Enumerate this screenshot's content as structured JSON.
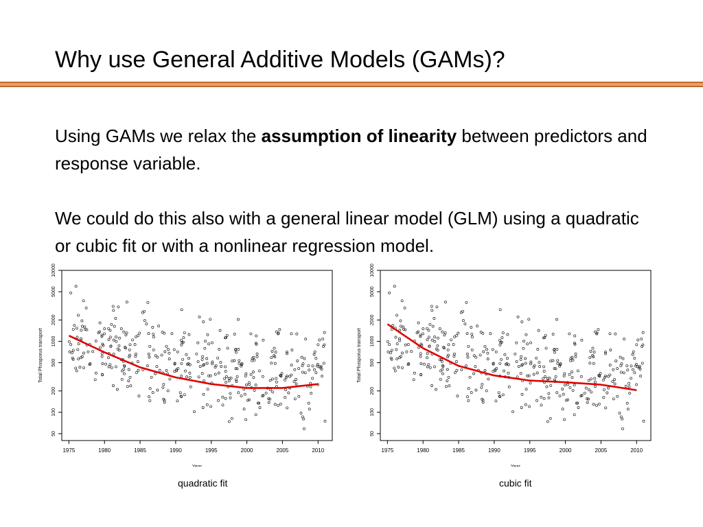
{
  "slide": {
    "title": "Why use General Additive Models (GAMs)?",
    "para1": {
      "before": "Using GAMs we relax the ",
      "bold": "assumption of linearity",
      "after": " between predictors and response variable."
    },
    "para2": "We could do this also with a general linear model (GLM) using a quadratic or cubic fit or with a nonlinear regression model.",
    "accent_color": "#e8a06a",
    "fit_color": "#e00000"
  },
  "chart_data": [
    {
      "type": "scatter",
      "caption": "quadratic fit",
      "xlabel": "Year",
      "ylabel": "Total Phosporus transport",
      "x_ticks": [
        "1975",
        "1980",
        "1985",
        "1990",
        "1995",
        "2000",
        "2005",
        "2010"
      ],
      "y_ticks": [
        "50",
        "100",
        "200",
        "500",
        "1000",
        "2000",
        "5000",
        "10000"
      ],
      "y_scale": "log",
      "xlim": [
        1974,
        2012
      ],
      "ylim": [
        40,
        10000
      ],
      "fit_curve": {
        "type": "line",
        "x": [
          1975,
          1980,
          1985,
          1990,
          1995,
          2000,
          2005,
          2010
        ],
        "y": [
          1200,
          700,
          430,
          310,
          250,
          220,
          220,
          250
        ]
      }
    },
    {
      "type": "scatter",
      "caption": "cubic fit",
      "xlabel": "Year",
      "ylabel": "Total Phosporus transport",
      "x_ticks": [
        "1975",
        "1980",
        "1985",
        "1990",
        "1995",
        "2000",
        "2005",
        "2010"
      ],
      "y_ticks": [
        "50",
        "100",
        "200",
        "500",
        "1000",
        "2000",
        "5000",
        "10000"
      ],
      "y_scale": "log",
      "xlim": [
        1974,
        2012
      ],
      "ylim": [
        40,
        10000
      ],
      "fit_curve": {
        "type": "line",
        "x": [
          1975,
          1980,
          1985,
          1990,
          1995,
          2000,
          2005,
          2010
        ],
        "y": [
          1750,
          800,
          450,
          330,
          280,
          265,
          245,
          205
        ]
      }
    }
  ]
}
